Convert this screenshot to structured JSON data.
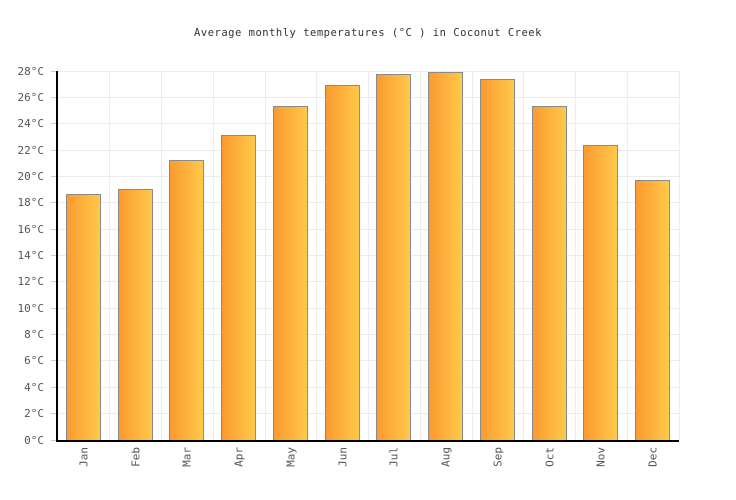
{
  "chart_data": {
    "type": "bar",
    "title": "Average monthly temperatures (°C ) in Coconut Creek",
    "categories": [
      "Jan",
      "Feb",
      "Mar",
      "Apr",
      "May",
      "Jun",
      "Jul",
      "Aug",
      "Sep",
      "Oct",
      "Nov",
      "Dec"
    ],
    "values": [
      18.7,
      19.1,
      21.3,
      23.2,
      25.4,
      27.0,
      27.8,
      28.0,
      27.4,
      25.4,
      22.4,
      19.8
    ],
    "unit": "°C",
    "xlabel": "",
    "ylabel": "",
    "ylim": [
      0,
      28
    ],
    "ytick_step": 2,
    "ytick_suffix": "°C",
    "grid": true,
    "legend": "none",
    "colors": {
      "bar_gradient_left": "#fb9a31",
      "bar_gradient_right": "#ffc948",
      "bar_border": "#8a8a8a",
      "gridline": "#ececec",
      "axis": "#000000",
      "tick_label": "#555555",
      "title": "#333333",
      "background": "#ffffff"
    }
  }
}
